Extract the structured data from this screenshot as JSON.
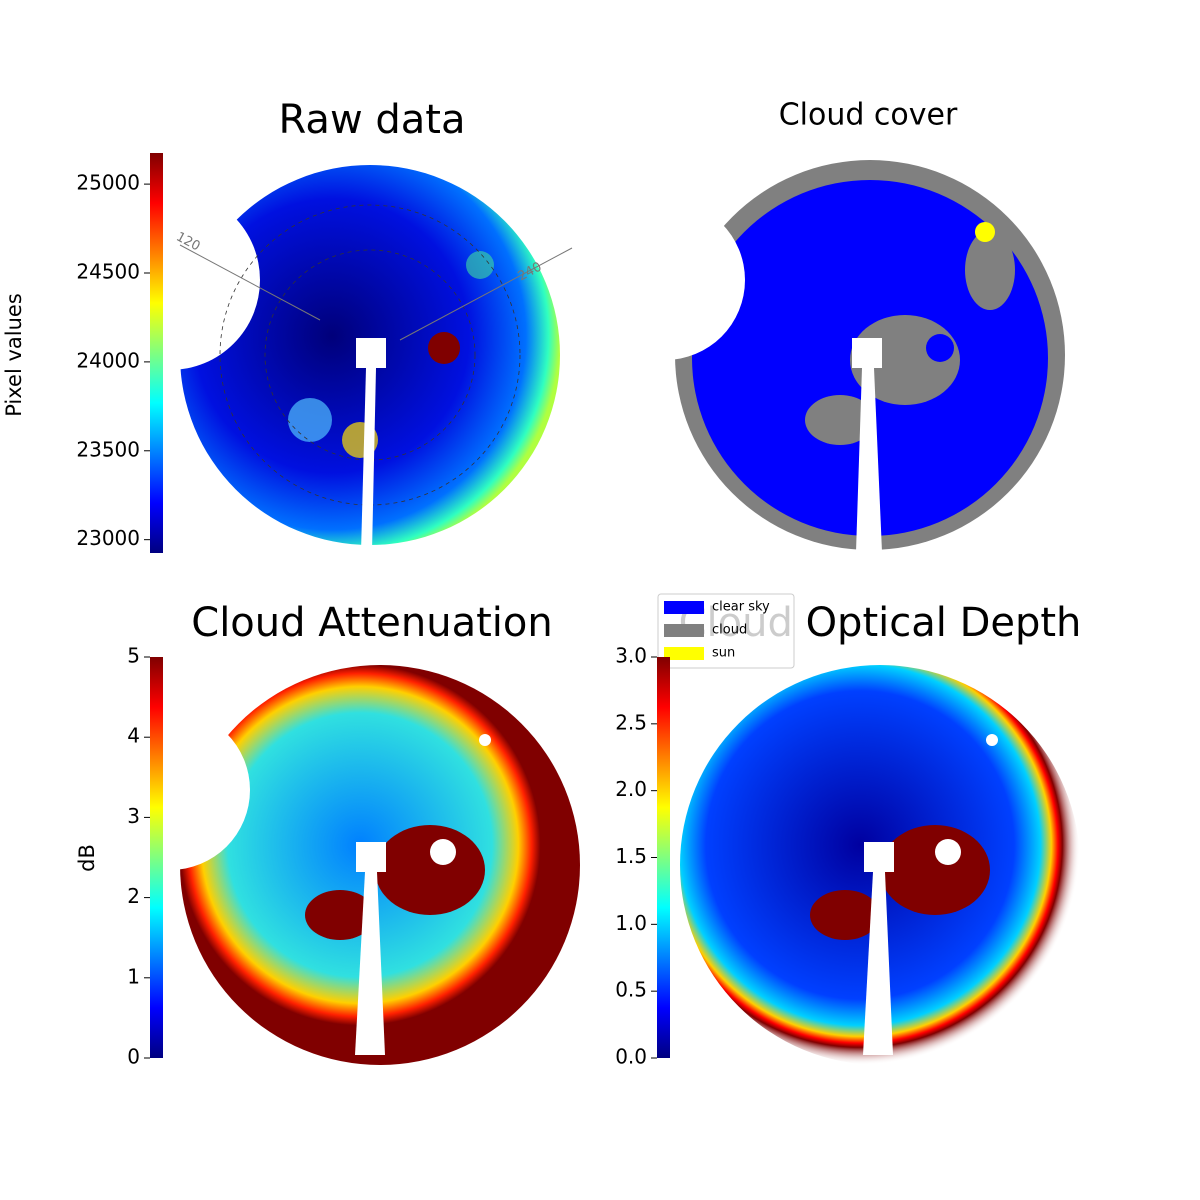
{
  "chart_data": [
    {
      "type": "image",
      "title": "Raw data",
      "colorbar_label": "Pixel values",
      "clim": [
        22925,
        25175
      ],
      "cticks": [
        23000,
        23500,
        24000,
        24500,
        25000
      ],
      "annotations": [
        "120",
        "240"
      ]
    },
    {
      "type": "image",
      "title": "Cloud cover",
      "legend": [
        {
          "name": "clear sky",
          "color": "#0000ff"
        },
        {
          "name": "cloud",
          "color": "#808080"
        },
        {
          "name": "sun",
          "color": "#ffff00"
        }
      ]
    },
    {
      "type": "image",
      "title": "Cloud Attenuation",
      "colorbar_label": "dB",
      "clim": [
        0,
        5
      ],
      "cticks": [
        0,
        1,
        2,
        3,
        4,
        5
      ]
    },
    {
      "type": "image",
      "title": "Cloud Optical Depth",
      "clim": [
        0,
        3
      ],
      "cticks": [
        {
          "value": 0,
          "label": "0.0"
        },
        0.5,
        {
          "value": 1,
          "label": "1.0"
        },
        1.5,
        {
          "value": 2,
          "label": "2.0"
        },
        2.5,
        {
          "value": 3,
          "label": "3.0"
        }
      ]
    }
  ]
}
